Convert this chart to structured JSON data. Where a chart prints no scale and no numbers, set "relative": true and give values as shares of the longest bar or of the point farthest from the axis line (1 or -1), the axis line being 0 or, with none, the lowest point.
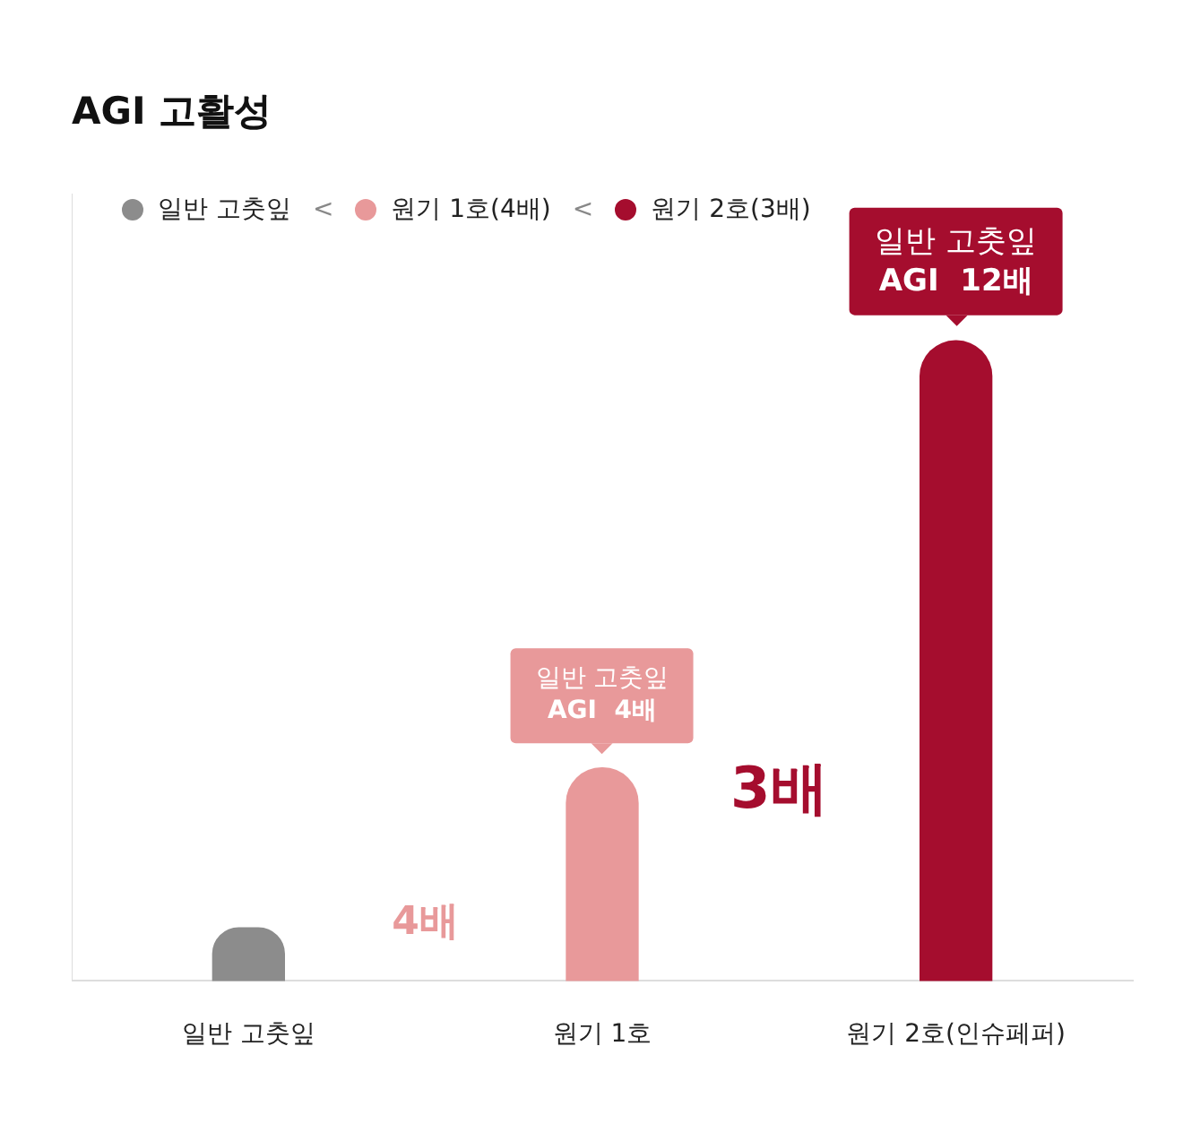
{
  "chart_data": {
    "type": "bar",
    "title": "AGI 고활성",
    "relative": true,
    "stacked": true,
    "legend": "top left",
    "categories": [
      "일반 고춧잎",
      "원기 1호",
      "원기 2호(인슈페퍼)"
    ],
    "series": [
      {
        "name": "일반 고춧잎",
        "color": "#8c8c8c",
        "values": [
          0.083,
          null,
          null
        ]
      },
      {
        "name": "원기 1호(4배)",
        "color": "#e8999a",
        "values": [
          null,
          0.333,
          null
        ]
      },
      {
        "name": "원기 2호(3배)",
        "color": "#a50d2e",
        "values": [
          null,
          null,
          1
        ]
      }
    ],
    "annotations": [
      {
        "text": "일반 고춧잎\nAGI  4배",
        "x": "원기 1호",
        "y": 0.333
      },
      {
        "text": "일반 고춧잎\nAGI  12배",
        "x": "원기 2호(인슈페퍼)",
        "y": 1
      },
      "4배",
      "3배",
      "<",
      "<"
    ]
  }
}
